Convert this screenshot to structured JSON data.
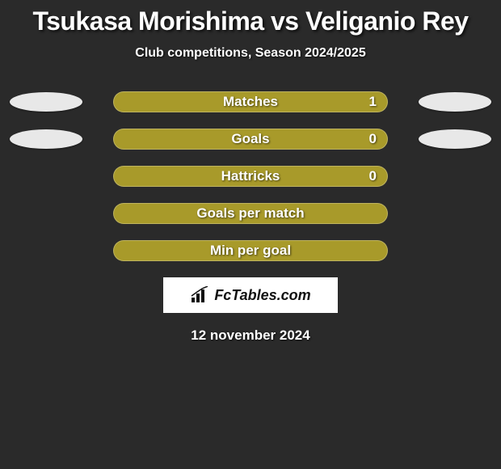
{
  "title": "Tsukasa Morishima vs Veliganio Rey",
  "subtitle": "Club competitions, Season 2024/2025",
  "bar_color": "#a89a2a",
  "bar_full_pct": 100,
  "rows": [
    {
      "label": "Matches",
      "value": "1",
      "show_value": true,
      "show_badges": true
    },
    {
      "label": "Goals",
      "value": "0",
      "show_value": true,
      "show_badges": true
    },
    {
      "label": "Hattricks",
      "value": "0",
      "show_value": true,
      "show_badges": false
    },
    {
      "label": "Goals per match",
      "value": "",
      "show_value": false,
      "show_badges": false
    },
    {
      "label": "Min per goal",
      "value": "",
      "show_value": false,
      "show_badges": false
    }
  ],
  "brand": "FcTables.com",
  "date": "12 november 2024"
}
